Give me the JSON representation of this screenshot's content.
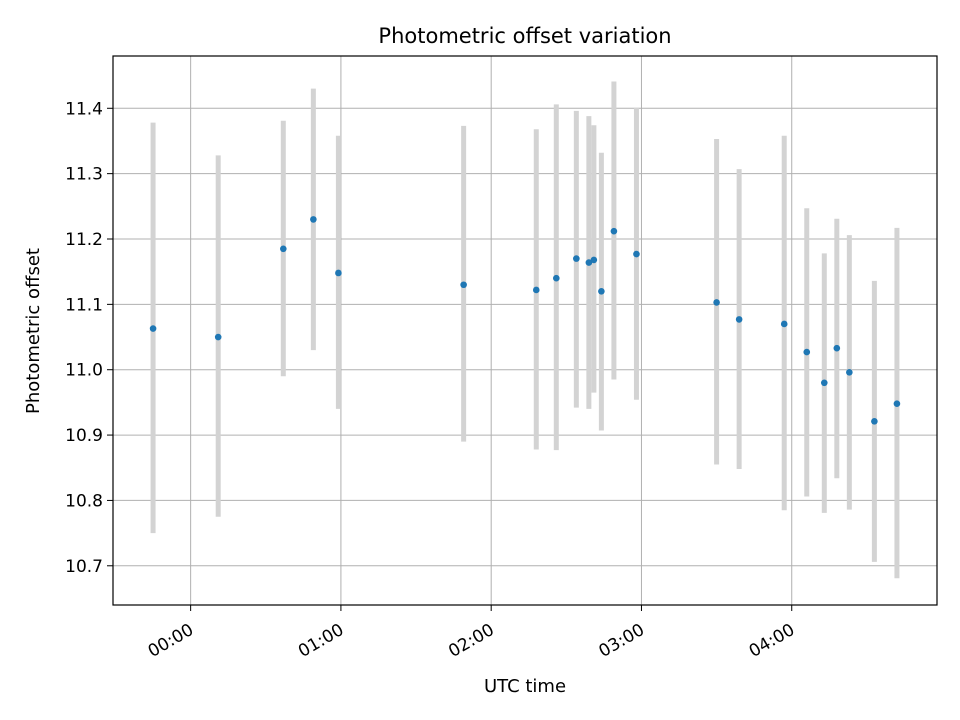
{
  "chart_data": {
    "type": "scatter",
    "title": "Photometric offset variation",
    "xlabel": "UTC time",
    "ylabel": "Photometric offset",
    "grid": true,
    "x_ticks": [
      "00:00",
      "01:00",
      "02:00",
      "03:00",
      "04:00"
    ],
    "y_ticks": [
      "10.7",
      "10.8",
      "10.9",
      "11.0",
      "11.1",
      "11.2",
      "11.3",
      "11.4"
    ],
    "xlim": [
      "23:29",
      "04:58"
    ],
    "ylim": [
      10.64,
      11.48
    ],
    "marker_color": "#1f77b4",
    "errorbar_color": "#d3d3d3",
    "points": [
      {
        "time": "23:45",
        "y": 11.063,
        "low": 10.75,
        "high": 11.378
      },
      {
        "time": "00:11",
        "y": 11.05,
        "low": 10.775,
        "high": 11.328
      },
      {
        "time": "00:37",
        "y": 11.185,
        "low": 10.99,
        "high": 11.381
      },
      {
        "time": "00:49",
        "y": 11.23,
        "low": 11.03,
        "high": 11.43
      },
      {
        "time": "00:59",
        "y": 11.148,
        "low": 10.94,
        "high": 11.358
      },
      {
        "time": "01:49",
        "y": 11.13,
        "low": 10.89,
        "high": 11.373
      },
      {
        "time": "02:18",
        "y": 11.122,
        "low": 10.878,
        "high": 11.368
      },
      {
        "time": "02:26",
        "y": 11.14,
        "low": 10.877,
        "high": 11.406
      },
      {
        "time": "02:34",
        "y": 11.17,
        "low": 10.942,
        "high": 11.396
      },
      {
        "time": "02:39",
        "y": 11.164,
        "low": 10.94,
        "high": 11.388
      },
      {
        "time": "02:41",
        "y": 11.168,
        "low": 10.965,
        "high": 11.374
      },
      {
        "time": "02:44",
        "y": 11.12,
        "low": 10.907,
        "high": 11.332
      },
      {
        "time": "02:49",
        "y": 11.212,
        "low": 10.985,
        "high": 11.441
      },
      {
        "time": "02:58",
        "y": 11.177,
        "low": 10.954,
        "high": 11.401
      },
      {
        "time": "03:30",
        "y": 11.103,
        "low": 10.855,
        "high": 11.353
      },
      {
        "time": "03:39",
        "y": 11.077,
        "low": 10.848,
        "high": 11.307
      },
      {
        "time": "03:57",
        "y": 11.07,
        "low": 10.785,
        "high": 11.358
      },
      {
        "time": "04:06",
        "y": 11.027,
        "low": 10.806,
        "high": 11.247
      },
      {
        "time": "04:13",
        "y": 10.98,
        "low": 10.781,
        "high": 11.178
      },
      {
        "time": "04:18",
        "y": 11.033,
        "low": 10.834,
        "high": 11.231
      },
      {
        "time": "04:23",
        "y": 10.996,
        "low": 10.786,
        "high": 11.206
      },
      {
        "time": "04:33",
        "y": 10.921,
        "low": 10.706,
        "high": 11.136
      },
      {
        "time": "04:42",
        "y": 10.948,
        "low": 10.681,
        "high": 11.217
      }
    ]
  }
}
